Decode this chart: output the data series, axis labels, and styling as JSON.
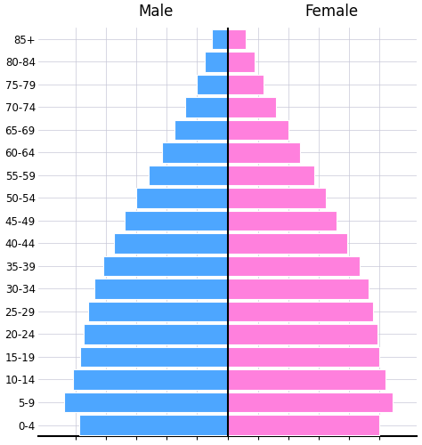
{
  "age_groups": [
    "0-4",
    "5-9",
    "10-14",
    "15-19",
    "20-24",
    "25-29",
    "30-34",
    "35-39",
    "40-44",
    "45-49",
    "50-54",
    "55-59",
    "60-64",
    "65-69",
    "70-74",
    "75-79",
    "80-84",
    "85+"
  ],
  "male": [
    9.8,
    10.8,
    10.2,
    9.7,
    9.5,
    9.2,
    8.8,
    8.2,
    7.5,
    6.8,
    6.0,
    5.2,
    4.3,
    3.5,
    2.8,
    2.0,
    1.5,
    1.0
  ],
  "female": [
    10.0,
    10.9,
    10.4,
    10.0,
    9.9,
    9.6,
    9.3,
    8.7,
    7.9,
    7.2,
    6.5,
    5.7,
    4.8,
    4.0,
    3.2,
    2.4,
    1.8,
    1.2
  ],
  "male_color": "#4da6ff",
  "female_color": "#ff80dd",
  "bar_edge_color": "#ffffff",
  "background_color": "#ffffff",
  "grid_color": "#c8c8d8",
  "center_line_color": "#000000",
  "axis_line_color": "#000000",
  "male_label": "Male",
  "female_label": "Female",
  "label_fontsize": 12,
  "tick_fontsize": 8.5,
  "bar_height": 0.88,
  "xlim": 12.5
}
